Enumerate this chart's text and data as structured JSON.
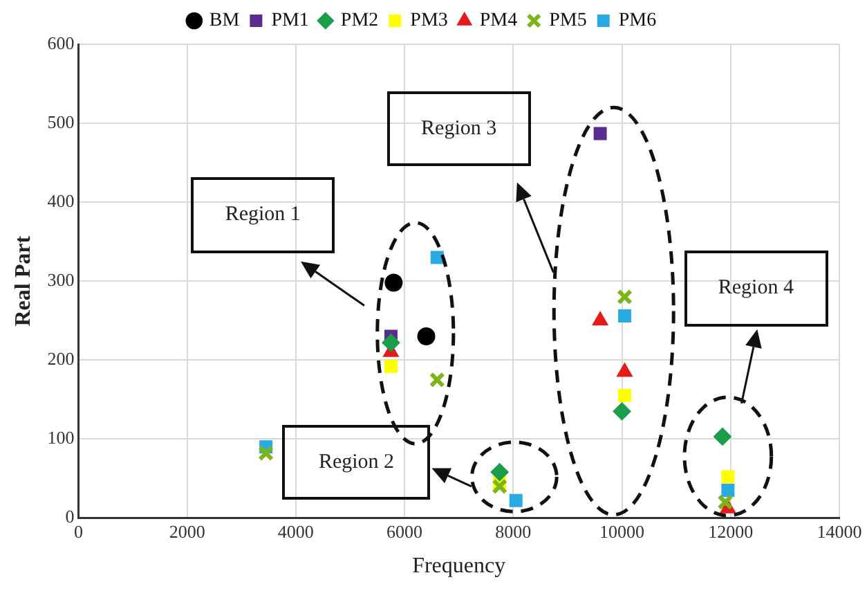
{
  "chart_data": {
    "type": "scatter",
    "xlabel": "Frequency",
    "ylabel": "Real Part",
    "xlim": [
      0,
      14000
    ],
    "xticks": [
      0,
      2000,
      4000,
      6000,
      8000,
      10000,
      12000,
      14000
    ],
    "ylim": [
      0,
      600
    ],
    "yticks": [
      0,
      100,
      200,
      300,
      400,
      500,
      600
    ],
    "grid": true,
    "legend": "top",
    "annotations": [
      "Region 1",
      "Region 2",
      "Region 3",
      "Region 4"
    ],
    "series": [
      {
        "name": "BM",
        "color": "#000000",
        "marker": "circle",
        "x": [
          5800,
          6400
        ],
        "values": [
          298,
          230
        ]
      },
      {
        "name": "PM1",
        "color": "#5b2c8f",
        "marker": "square",
        "x": [
          5750,
          9600
        ],
        "values": [
          230,
          487
        ]
      },
      {
        "name": "PM2",
        "color": "#1a9e4a",
        "marker": "diamond",
        "x": [
          5750,
          7750,
          10000,
          11850
        ],
        "values": [
          222,
          58,
          135,
          103
        ]
      },
      {
        "name": "PM3",
        "color": "#ffff00",
        "marker": "square",
        "x": [
          5750,
          7750,
          10050,
          11950
        ],
        "values": [
          192,
          45,
          155,
          52
        ]
      },
      {
        "name": "PM4",
        "color": "#e41a1c",
        "marker": "triangle",
        "x": [
          5750,
          9600,
          10050,
          11950
        ],
        "values": [
          210,
          250,
          185,
          12
        ]
      },
      {
        "name": "PM5",
        "color": "#7cb518",
        "marker": "cross",
        "x": [
          3450,
          6600,
          7750,
          10050,
          11900
        ],
        "values": [
          82,
          175,
          40,
          280,
          20
        ]
      },
      {
        "name": "PM6",
        "color": "#29abe2",
        "marker": "square",
        "x": [
          3450,
          6600,
          8050,
          10050,
          11950
        ],
        "values": [
          90,
          330,
          22,
          256,
          35
        ]
      }
    ]
  }
}
